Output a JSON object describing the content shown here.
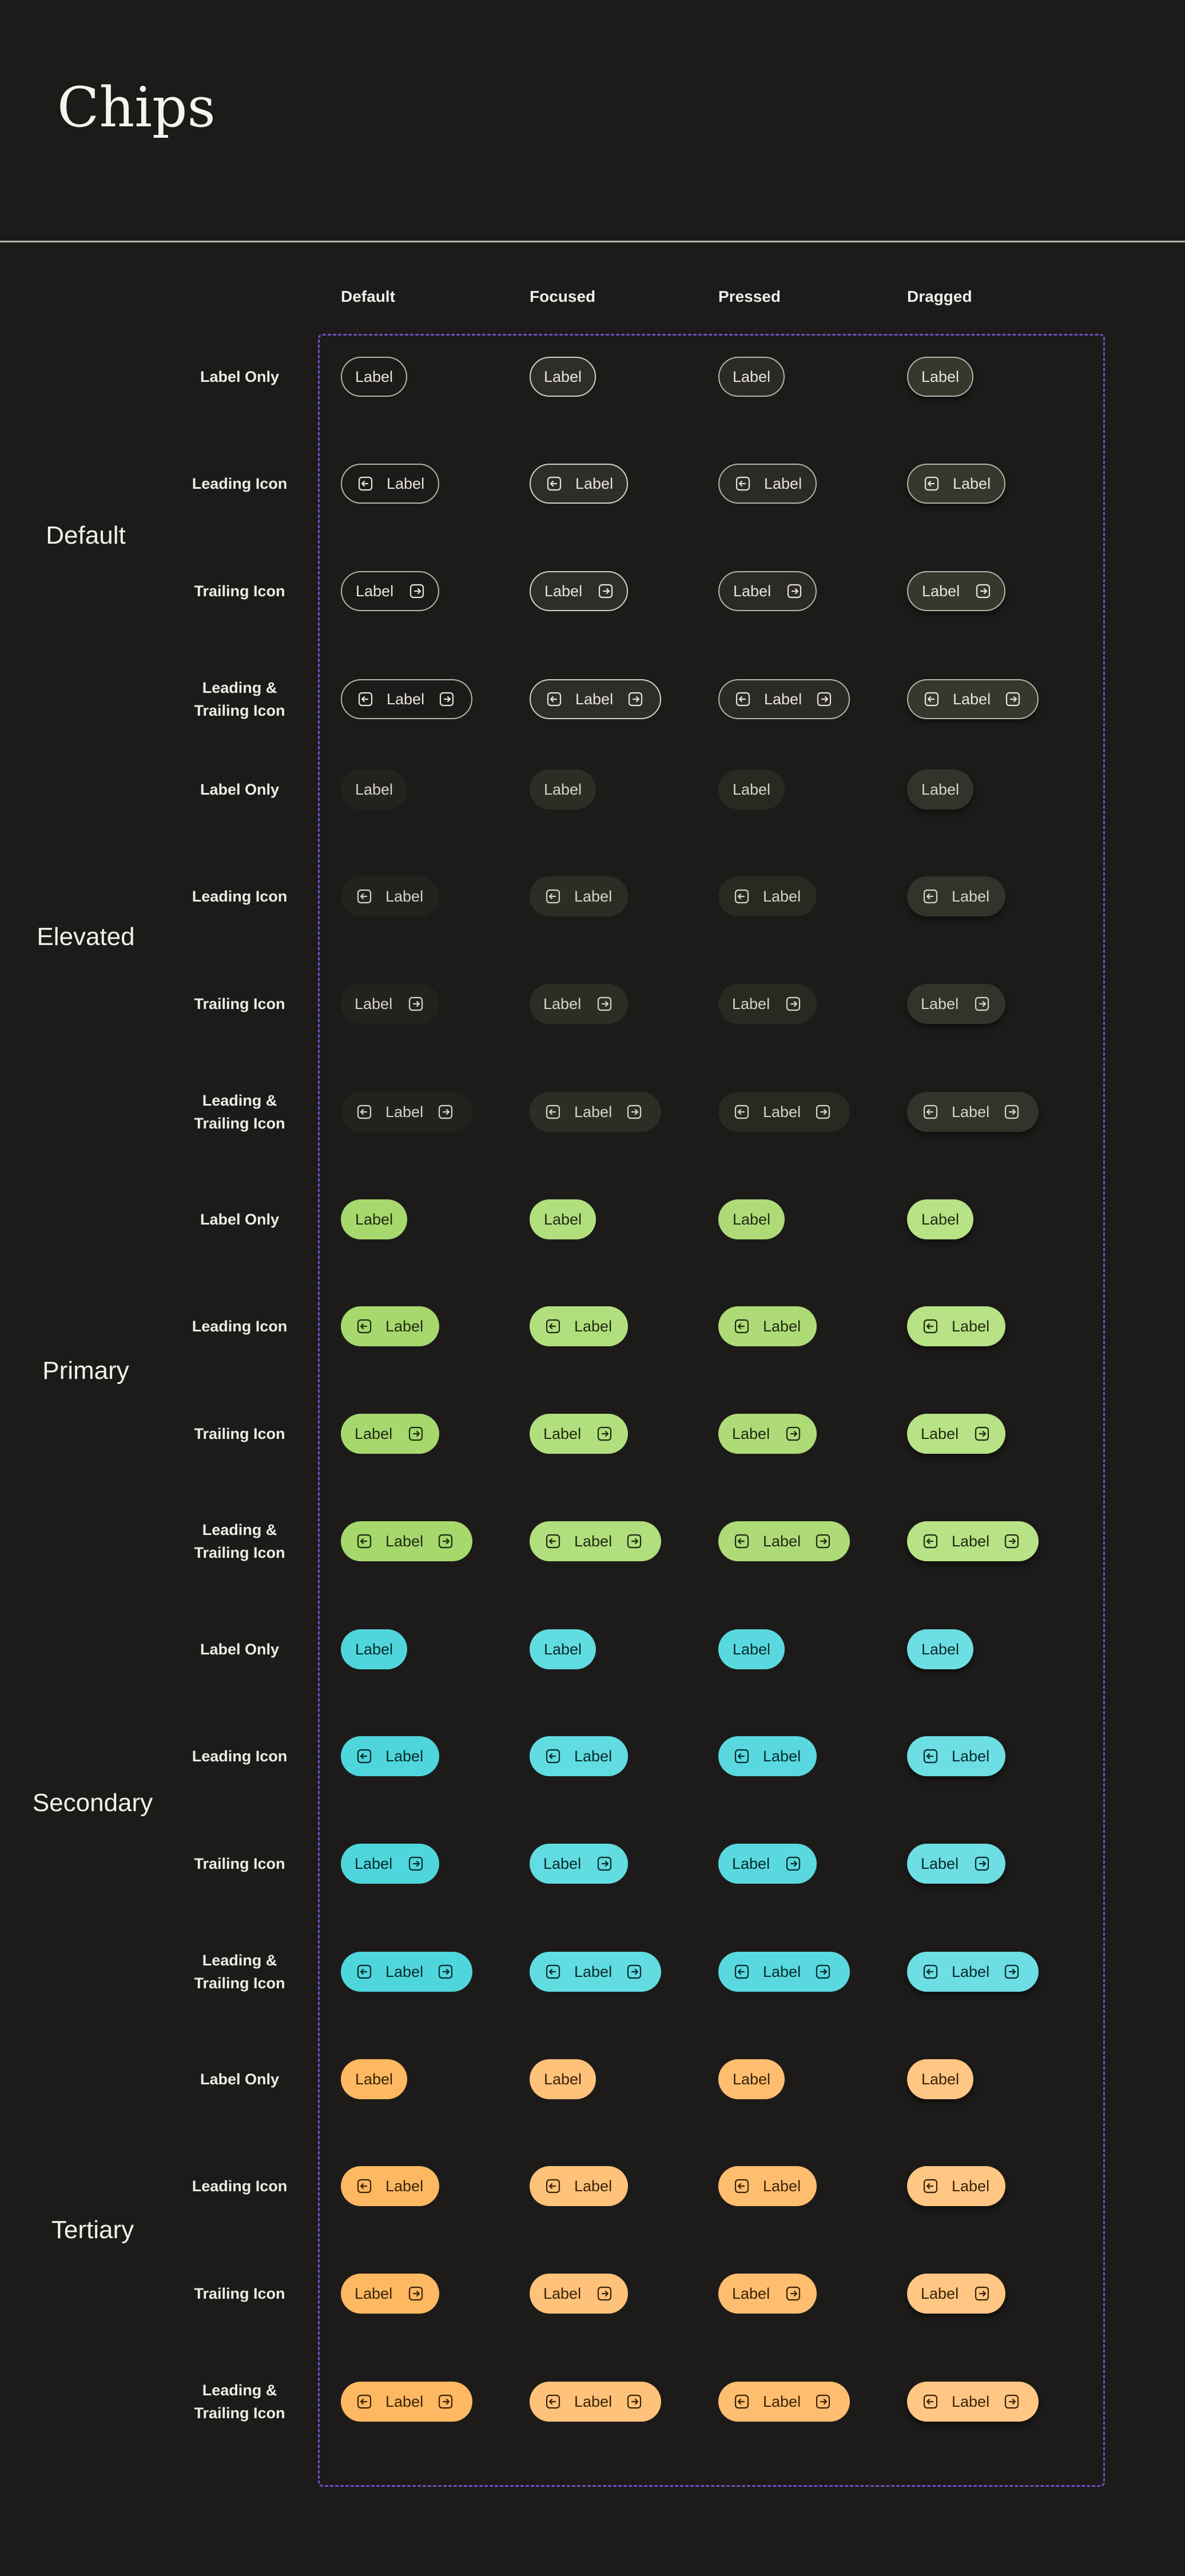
{
  "page": {
    "title": "Chips"
  },
  "columns": [
    "Default",
    "Focused",
    "Pressed",
    "Dragged"
  ],
  "row_labels": {
    "label_only": "Label Only",
    "leading_icon": "Leading Icon",
    "trailing_icon": "Trailing Icon",
    "leading_trailing_icon": "Leading & Trailing Icon"
  },
  "chip_label": "Label",
  "icons": {
    "leading": "arrow-left-boxed-icon",
    "trailing": "arrow-right-boxed-icon"
  },
  "groups": [
    {
      "key": "default",
      "name": "Default"
    },
    {
      "key": "elevated",
      "name": "Elevated"
    },
    {
      "key": "primary",
      "name": "Primary"
    },
    {
      "key": "secondary",
      "name": "Secondary"
    },
    {
      "key": "tertiary",
      "name": "Tertiary"
    }
  ],
  "colors": {
    "background": "#1c1b19",
    "frame_border": "#6f4fc4",
    "outline": "#b8b5ab",
    "elevated": "#23221f",
    "primary": "#a6d86d",
    "secondary": "#4fd6dc",
    "tertiary": "#ffb862"
  }
}
